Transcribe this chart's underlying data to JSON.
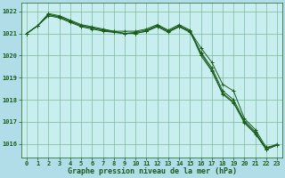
{
  "background_color": "#b0dde8",
  "plot_bg_color": "#c8eef0",
  "grid_color": "#7db89a",
  "line_color": "#1a5c1a",
  "xlabel": "Graphe pression niveau de la mer (hPa)",
  "xlabel_fontsize": 6.0,
  "xlabel_color": "#1a5c1a",
  "tick_color": "#1a5c1a",
  "tick_fontsize": 5.0,
  "ylim": [
    1015.4,
    1022.4
  ],
  "xlim": [
    -0.5,
    23.5
  ],
  "yticks": [
    1016,
    1017,
    1018,
    1019,
    1020,
    1021,
    1022
  ],
  "xticks": [
    0,
    1,
    2,
    3,
    4,
    5,
    6,
    7,
    8,
    9,
    10,
    11,
    12,
    13,
    14,
    15,
    16,
    17,
    18,
    19,
    20,
    21,
    22,
    23
  ],
  "series": [
    [
      1021.0,
      1021.35,
      1021.85,
      1021.75,
      1021.55,
      1021.35,
      1021.25,
      1021.15,
      1021.1,
      1021.0,
      1021.05,
      1021.15,
      1021.35,
      1021.1,
      1021.35,
      1021.1,
      1020.35,
      1019.7,
      1018.7,
      1018.4,
      1017.15,
      1016.65,
      1015.85,
      1015.95
    ],
    [
      1021.0,
      1021.35,
      1021.8,
      1021.7,
      1021.5,
      1021.3,
      1021.2,
      1021.1,
      1021.05,
      1021.0,
      1021.0,
      1021.1,
      1021.3,
      1021.05,
      1021.3,
      1021.05,
      1020.15,
      1019.45,
      1018.4,
      1018.0,
      1017.05,
      1016.55,
      1015.75,
      1015.95
    ],
    [
      1021.0,
      1021.35,
      1021.9,
      1021.8,
      1021.6,
      1021.4,
      1021.3,
      1021.2,
      1021.1,
      1021.1,
      1021.1,
      1021.2,
      1021.4,
      1021.15,
      1021.4,
      1021.15,
      1020.1,
      1019.35,
      1018.3,
      1017.9,
      1017.0,
      1016.5,
      1015.8,
      1016.0
    ],
    [
      1021.0,
      1021.35,
      1021.85,
      1021.75,
      1021.55,
      1021.35,
      1021.25,
      1021.15,
      1021.05,
      1021.0,
      1021.0,
      1021.1,
      1021.35,
      1021.1,
      1021.3,
      1021.1,
      1020.0,
      1019.3,
      1018.25,
      1017.85,
      1016.95,
      1016.45,
      1015.75,
      1015.95
    ]
  ]
}
